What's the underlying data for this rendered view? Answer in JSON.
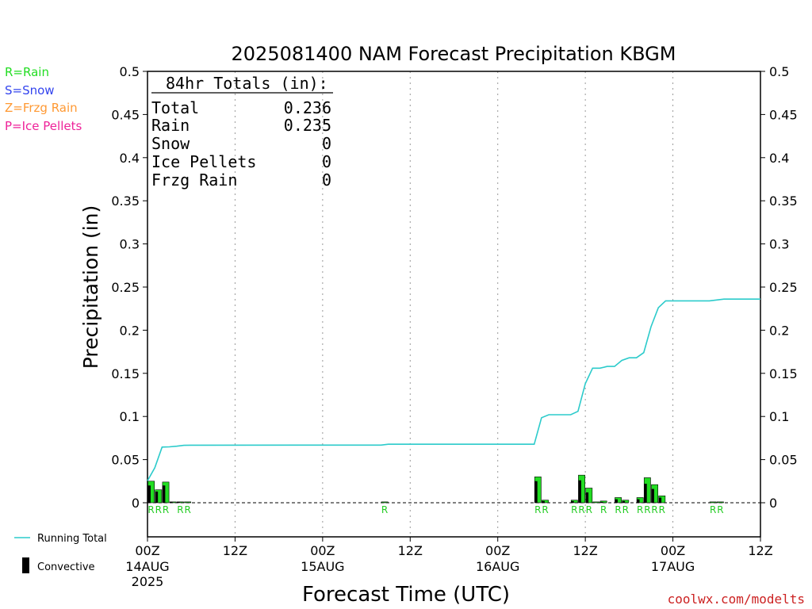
{
  "chart_data": {
    "type": "bar",
    "title": "2025081400 NAM Forecast Precipitation KBGM",
    "xlabel": "Forecast Time (UTC)",
    "ylabel": "Precipitation (in)",
    "ylim": [
      0,
      0.5
    ],
    "xlim_hours": [
      0,
      84
    ],
    "grid": "vertical dotted",
    "y_ticks": [
      "0",
      "0.05",
      "0.1",
      "0.15",
      "0.2",
      "0.25",
      "0.3",
      "0.35",
      "0.4",
      "0.45",
      "0.5"
    ],
    "y_tick_values": [
      0,
      0.05,
      0.1,
      0.15,
      0.2,
      0.25,
      0.3,
      0.35,
      0.4,
      0.45,
      0.5
    ],
    "x_ticks": [
      {
        "hour": 0,
        "label": "00Z",
        "sub": "14AUG",
        "sub2": "2025"
      },
      {
        "hour": 12,
        "label": "12Z"
      },
      {
        "hour": 24,
        "label": "00Z",
        "sub": "15AUG"
      },
      {
        "hour": 36,
        "label": "12Z"
      },
      {
        "hour": 48,
        "label": "00Z",
        "sub": "16AUG"
      },
      {
        "hour": 60,
        "label": "12Z"
      },
      {
        "hour": 72,
        "label": "00Z",
        "sub": "17AUG"
      },
      {
        "hour": 84,
        "label": "12Z"
      }
    ],
    "totals": {
      "heading": "84hr Totals (in):",
      "rows": [
        {
          "label": "Total",
          "value": "0.236"
        },
        {
          "label": "Rain",
          "value": "0.235"
        },
        {
          "label": "Snow",
          "value": "0"
        },
        {
          "label": "Ice Pellets",
          "value": "0"
        },
        {
          "label": "Frzg Rain",
          "value": "0"
        }
      ]
    },
    "type_legend": [
      {
        "text": "R=Rain",
        "color": "#22dd22"
      },
      {
        "text": "S=Snow",
        "color": "#3344ee"
      },
      {
        "text": "Z=Frzg Rain",
        "color": "#ff9933"
      },
      {
        "text": "P=Ice Pellets",
        "color": "#ee2299"
      }
    ],
    "series_legend": [
      {
        "text": "Running Total",
        "color": "#2ccbcb"
      },
      {
        "text": "Convective",
        "color": "#000000"
      }
    ],
    "bars": [
      {
        "hour": 1,
        "value": 0.025,
        "convective": 0.02
      },
      {
        "hour": 2,
        "value": 0.015,
        "convective": 0.013
      },
      {
        "hour": 3,
        "value": 0.024,
        "convective": 0.02
      },
      {
        "hour": 4,
        "value": 0.001,
        "convective": 0.001
      },
      {
        "hour": 5,
        "value": 0.001,
        "convective": 0.001
      },
      {
        "hour": 6,
        "value": 0.001,
        "convective": 0.0
      },
      {
        "hour": 33,
        "value": 0.001,
        "convective": 0.0
      },
      {
        "hour": 54,
        "value": 0.03,
        "convective": 0.025
      },
      {
        "hour": 55,
        "value": 0.003,
        "convective": 0.002
      },
      {
        "hour": 59,
        "value": 0.003,
        "convective": 0.002
      },
      {
        "hour": 60,
        "value": 0.032,
        "convective": 0.026
      },
      {
        "hour": 61,
        "value": 0.017,
        "convective": 0.012
      },
      {
        "hour": 62,
        "value": 0.001,
        "convective": 0.0
      },
      {
        "hour": 63,
        "value": 0.002,
        "convective": 0.001
      },
      {
        "hour": 65,
        "value": 0.006,
        "convective": 0.004
      },
      {
        "hour": 66,
        "value": 0.003,
        "convective": 0.002
      },
      {
        "hour": 68,
        "value": 0.006,
        "convective": 0.004
      },
      {
        "hour": 69,
        "value": 0.029,
        "convective": 0.022
      },
      {
        "hour": 70,
        "value": 0.021,
        "convective": 0.016
      },
      {
        "hour": 71,
        "value": 0.008,
        "convective": 0.006
      },
      {
        "hour": 78,
        "value": 0.001,
        "convective": 0.0
      },
      {
        "hour": 79,
        "value": 0.001,
        "convective": 0.0
      }
    ],
    "type_labels": [
      {
        "hour": 1,
        "text": "R"
      },
      {
        "hour": 2,
        "text": "R"
      },
      {
        "hour": 3,
        "text": "R"
      },
      {
        "hour": 5,
        "text": "R"
      },
      {
        "hour": 6,
        "text": "R"
      },
      {
        "hour": 33,
        "text": "R"
      },
      {
        "hour": 54,
        "text": "R"
      },
      {
        "hour": 55,
        "text": "R"
      },
      {
        "hour": 59,
        "text": "R"
      },
      {
        "hour": 60,
        "text": "R"
      },
      {
        "hour": 61,
        "text": "R"
      },
      {
        "hour": 63,
        "text": "R"
      },
      {
        "hour": 65,
        "text": "R"
      },
      {
        "hour": 66,
        "text": "R"
      },
      {
        "hour": 68,
        "text": "R"
      },
      {
        "hour": 69,
        "text": "R"
      },
      {
        "hour": 70,
        "text": "R"
      },
      {
        "hour": 71,
        "text": "R"
      },
      {
        "hour": 78,
        "text": "R"
      },
      {
        "hour": 79,
        "text": "R"
      }
    ],
    "running_total": {
      "name": "Running Total",
      "points": [
        [
          0,
          0.0255
        ],
        [
          1,
          0.0405
        ],
        [
          2,
          0.0645
        ],
        [
          3,
          0.0648
        ],
        [
          4,
          0.0655
        ],
        [
          5,
          0.0665
        ],
        [
          6,
          0.0667
        ],
        [
          32,
          0.0668
        ],
        [
          33,
          0.0678
        ],
        [
          53,
          0.0678
        ],
        [
          54,
          0.0985
        ],
        [
          55,
          0.102
        ],
        [
          58,
          0.102
        ],
        [
          59,
          0.106
        ],
        [
          60,
          0.138
        ],
        [
          61,
          0.156
        ],
        [
          62,
          0.156
        ],
        [
          63,
          0.158
        ],
        [
          64,
          0.158
        ],
        [
          65,
          0.165
        ],
        [
          66,
          0.168
        ],
        [
          67,
          0.168
        ],
        [
          68,
          0.174
        ],
        [
          69,
          0.204
        ],
        [
          70,
          0.226
        ],
        [
          71,
          0.234
        ],
        [
          77,
          0.234
        ],
        [
          79,
          0.236
        ],
        [
          84,
          0.236
        ]
      ]
    },
    "watermark": "coolwx.com/modelts"
  }
}
